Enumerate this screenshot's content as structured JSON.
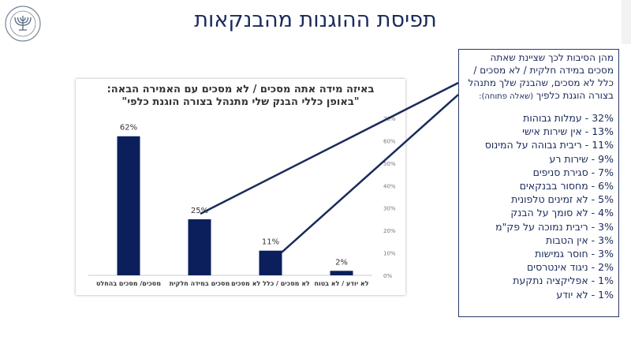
{
  "page": {
    "title": "תפיסת ההוגנות מהבנקאות",
    "logo_text": "BANK OF ISRAEL"
  },
  "callout": {
    "intro": "מהן הסיבות לכך שציינת שאתה מסכים במידה חלקית / לא מסכים / כלל לא מסכים, שהבנק שלך מתנהל בצורה הוגנת כלפיך",
    "intro_note": "(שאלה פתוחה):",
    "reasons": [
      "32% - עמלות גבוהות",
      "13% - אין שירות אישי",
      "11% - ריבית גבוהה על המינוס",
      "9% - שירות רע",
      "7% - סגירת סניפים",
      "6% - מחסור בבנקאים",
      "5% - לא זמינים טלפונית",
      "4% - לא סומך על הבנק",
      "3% - ריבית נמוכה על פק\"מ",
      "3% - אין הטבות",
      "3% - חוסר גמישות",
      "2% - ניגוד אינטרסים",
      "1% - אפליקציה נתקעת",
      "1% - לא יודע"
    ]
  },
  "colors": {
    "bar": "#0a1f5c",
    "title": "#1a2a5a",
    "connector": "#1a2a5a",
    "axis": "#888888"
  },
  "chart_data": {
    "type": "bar",
    "title_line1": "באיזה מידה אתה מסכים / לא מסכים עם האמירה הבאה:",
    "title_line2": "\"באופן כללי הבנק שלי מתנהל בצורה הוגנת כלפי\"",
    "categories": [
      "מסכים/ מסכים בהחלט",
      "מסכים במידה חלקית",
      "לא מסכים / כלל לא מסכים",
      "לא יודע / לא בטוח"
    ],
    "values": [
      62,
      25,
      11,
      2
    ],
    "value_labels": [
      "62%",
      "25%",
      "11%",
      "2%"
    ],
    "ylim": [
      0,
      70
    ],
    "yticks": [
      "0%",
      "10%",
      "20%",
      "30%",
      "40%",
      "50%",
      "60%",
      "70%"
    ],
    "ytick_values": [
      0,
      10,
      20,
      30,
      40,
      50,
      60,
      70
    ],
    "y_axis_side": "right",
    "grid": false,
    "xlabel": "",
    "ylabel": ""
  }
}
